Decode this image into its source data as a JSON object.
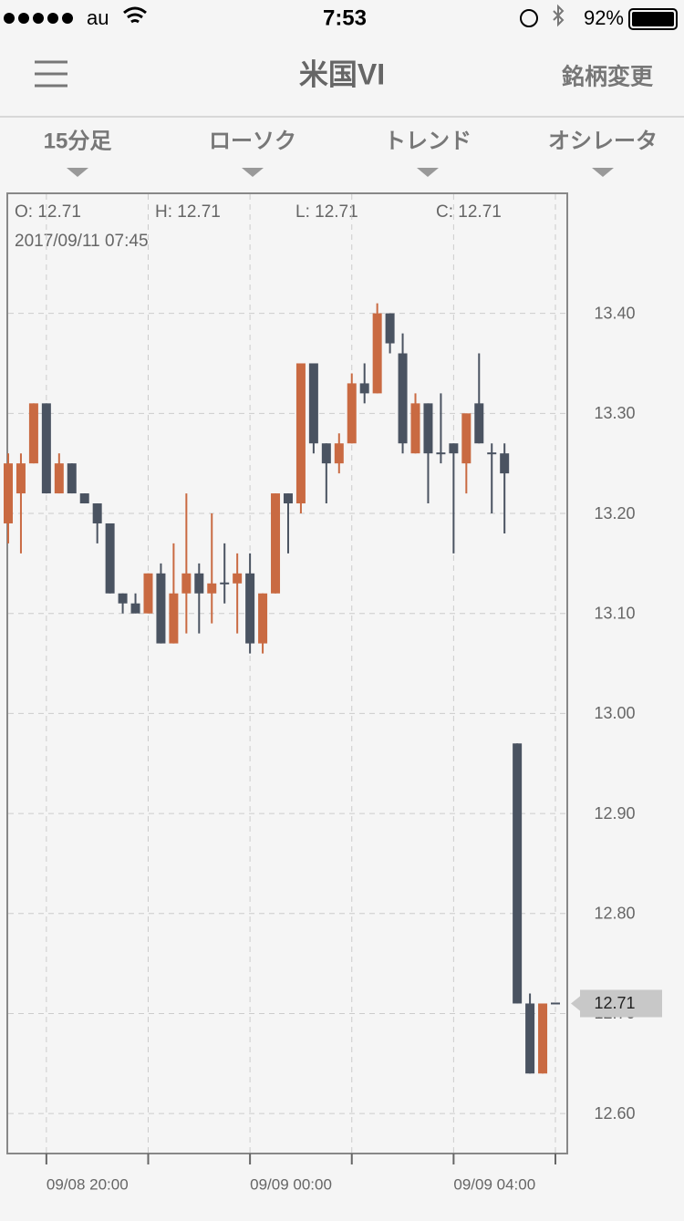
{
  "status_bar": {
    "carrier": "au",
    "time": "7:53",
    "battery": "92%"
  },
  "header": {
    "title": "米国VI",
    "action": "銘柄変更"
  },
  "tabs": [
    "15分足",
    "ローソク",
    "トレンド",
    "オシレータ"
  ],
  "info": {
    "open": "O: 12.71",
    "high": "H: 12.71",
    "low": "L: 12.71",
    "close": "C: 12.71",
    "datetime": "2017/09/11 07:45"
  },
  "chart_data": {
    "type": "candlestick",
    "categories": [
      null,
      null,
      null,
      "09/08 20:00",
      null,
      null,
      null,
      null,
      null,
      null,
      null,
      null,
      null,
      null,
      null,
      null,
      null,
      null,
      null,
      "09/09 00:00",
      null,
      null,
      null,
      null,
      null,
      null,
      null,
      null,
      null,
      null,
      null,
      null,
      null,
      null,
      null,
      "09/09 04:00",
      null,
      null,
      null,
      null,
      null,
      null,
      null,
      null
    ],
    "open": [
      13.19,
      13.22,
      13.25,
      13.31,
      13.22,
      13.25,
      13.22,
      13.21,
      13.19,
      13.12,
      13.11,
      13.1,
      13.14,
      13.07,
      13.12,
      13.14,
      13.12,
      13.13,
      13.13,
      13.14,
      13.07,
      13.12,
      13.22,
      13.21,
      13.35,
      13.27,
      13.25,
      13.27,
      13.33,
      13.32,
      13.4,
      13.36,
      13.26,
      13.31,
      13.26,
      13.27,
      13.25,
      13.31,
      13.26,
      13.26,
      12.97,
      12.71,
      12.64,
      12.71
    ],
    "high": [
      13.26,
      13.26,
      13.31,
      13.31,
      13.26,
      13.25,
      13.22,
      13.21,
      13.19,
      13.12,
      13.12,
      13.14,
      13.15,
      13.17,
      13.22,
      13.15,
      13.2,
      13.17,
      13.16,
      13.16,
      13.12,
      13.22,
      13.22,
      13.35,
      13.35,
      13.27,
      13.28,
      13.34,
      13.35,
      13.41,
      13.4,
      13.38,
      13.32,
      13.31,
      13.32,
      13.27,
      13.3,
      13.36,
      13.27,
      13.27,
      12.97,
      12.72,
      12.71,
      12.71
    ],
    "low": [
      13.17,
      13.16,
      13.25,
      13.22,
      13.22,
      13.22,
      13.21,
      13.17,
      13.12,
      13.1,
      13.1,
      13.1,
      13.07,
      13.07,
      13.08,
      13.08,
      13.09,
      13.11,
      13.08,
      13.06,
      13.06,
      13.12,
      13.16,
      13.2,
      13.26,
      13.21,
      13.24,
      13.27,
      13.31,
      13.32,
      13.36,
      13.26,
      13.26,
      13.21,
      13.25,
      13.16,
      13.22,
      13.27,
      13.2,
      13.18,
      12.71,
      12.64,
      12.64,
      12.71
    ],
    "close": [
      13.25,
      13.25,
      13.31,
      13.22,
      13.25,
      13.22,
      13.21,
      13.19,
      13.12,
      13.11,
      13.1,
      13.14,
      13.07,
      13.12,
      13.14,
      13.12,
      13.13,
      13.13,
      13.14,
      13.07,
      13.12,
      13.22,
      13.21,
      13.35,
      13.27,
      13.25,
      13.27,
      13.33,
      13.32,
      13.4,
      13.37,
      13.27,
      13.31,
      13.26,
      13.26,
      13.26,
      13.3,
      13.27,
      13.26,
      13.24,
      12.71,
      12.64,
      12.71,
      12.71
    ],
    "up_color": "#c96a42",
    "down_color": "#4a5361",
    "ylim": [
      12.56,
      13.52
    ],
    "yticks": [
      {
        "value": 12.6,
        "label": "12.60"
      },
      {
        "value": 12.7,
        "label": "12.70"
      },
      {
        "value": 12.8,
        "label": "12.80"
      },
      {
        "value": 12.9,
        "label": "12.90"
      },
      {
        "value": 13.0,
        "label": "13.00"
      },
      {
        "value": 13.1,
        "label": "13.10"
      },
      {
        "value": 13.2,
        "label": "13.20"
      },
      {
        "value": 13.3,
        "label": "13.30"
      },
      {
        "value": 13.4,
        "label": "13.40"
      }
    ],
    "current_price": 12.71,
    "grid": true
  }
}
